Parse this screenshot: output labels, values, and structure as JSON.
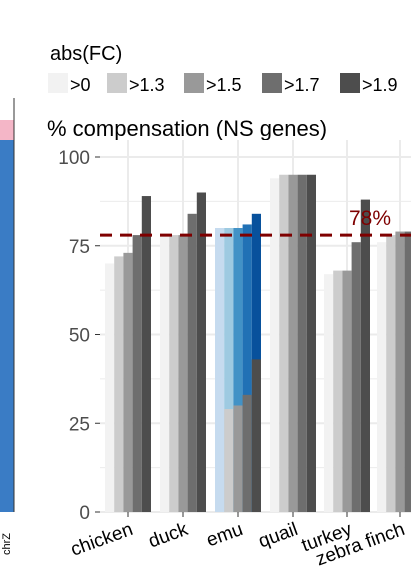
{
  "colors": {
    "gt0": "#f2f2f2",
    "gt1_3": "#cccccc",
    "gt1_5": "#999999",
    "gt1_7": "#6e6e6e",
    "gt1_9": "#4d4d4d",
    "emu_gt0": "#c6dbef",
    "emu_gt1_3": "#9ecae1",
    "emu_gt1_5": "#4292c6",
    "emu_gt1_7": "#2171b5",
    "emu_gt1_9": "#08519c",
    "reference_line": "#7f0000",
    "left_panel_blue": "#3a7cc5",
    "left_panel_pink": "#f4b6c7",
    "grid": "#ebebeb"
  },
  "left_panel": {
    "axis_label": "chrZ"
  },
  "chart_data": {
    "type": "bar",
    "title": "% compensation (NS genes)",
    "legend": {
      "title": "abs(FC)",
      "position": "top",
      "entries": [
        ">0",
        ">1.3",
        ">1.5",
        ">1.7",
        ">1.9"
      ]
    },
    "categories": [
      "chicken",
      "duck",
      "emu",
      "quail",
      "turkey",
      "zebra finch"
    ],
    "series": [
      {
        "name": ">0",
        "values": [
          70,
          78,
          80,
          94,
          67,
          76
        ]
      },
      {
        "name": ">1.3",
        "values": [
          72,
          78,
          80,
          95,
          68,
          78
        ]
      },
      {
        "name": ">1.5",
        "values": [
          73,
          78,
          80,
          95,
          68,
          79
        ]
      },
      {
        "name": ">1.7",
        "values": [
          78,
          84,
          81,
          95,
          76,
          79
        ]
      },
      {
        "name": ">1.9",
        "values": [
          89,
          90,
          84,
          95,
          88,
          79
        ]
      }
    ],
    "emu_lower_values": [
      29,
      30,
      33,
      43
    ],
    "ylim": [
      0,
      100
    ],
    "yticks": [
      0,
      25,
      50,
      75,
      100
    ],
    "grid": true,
    "reference_line": {
      "value": 78,
      "label": "78%"
    }
  }
}
